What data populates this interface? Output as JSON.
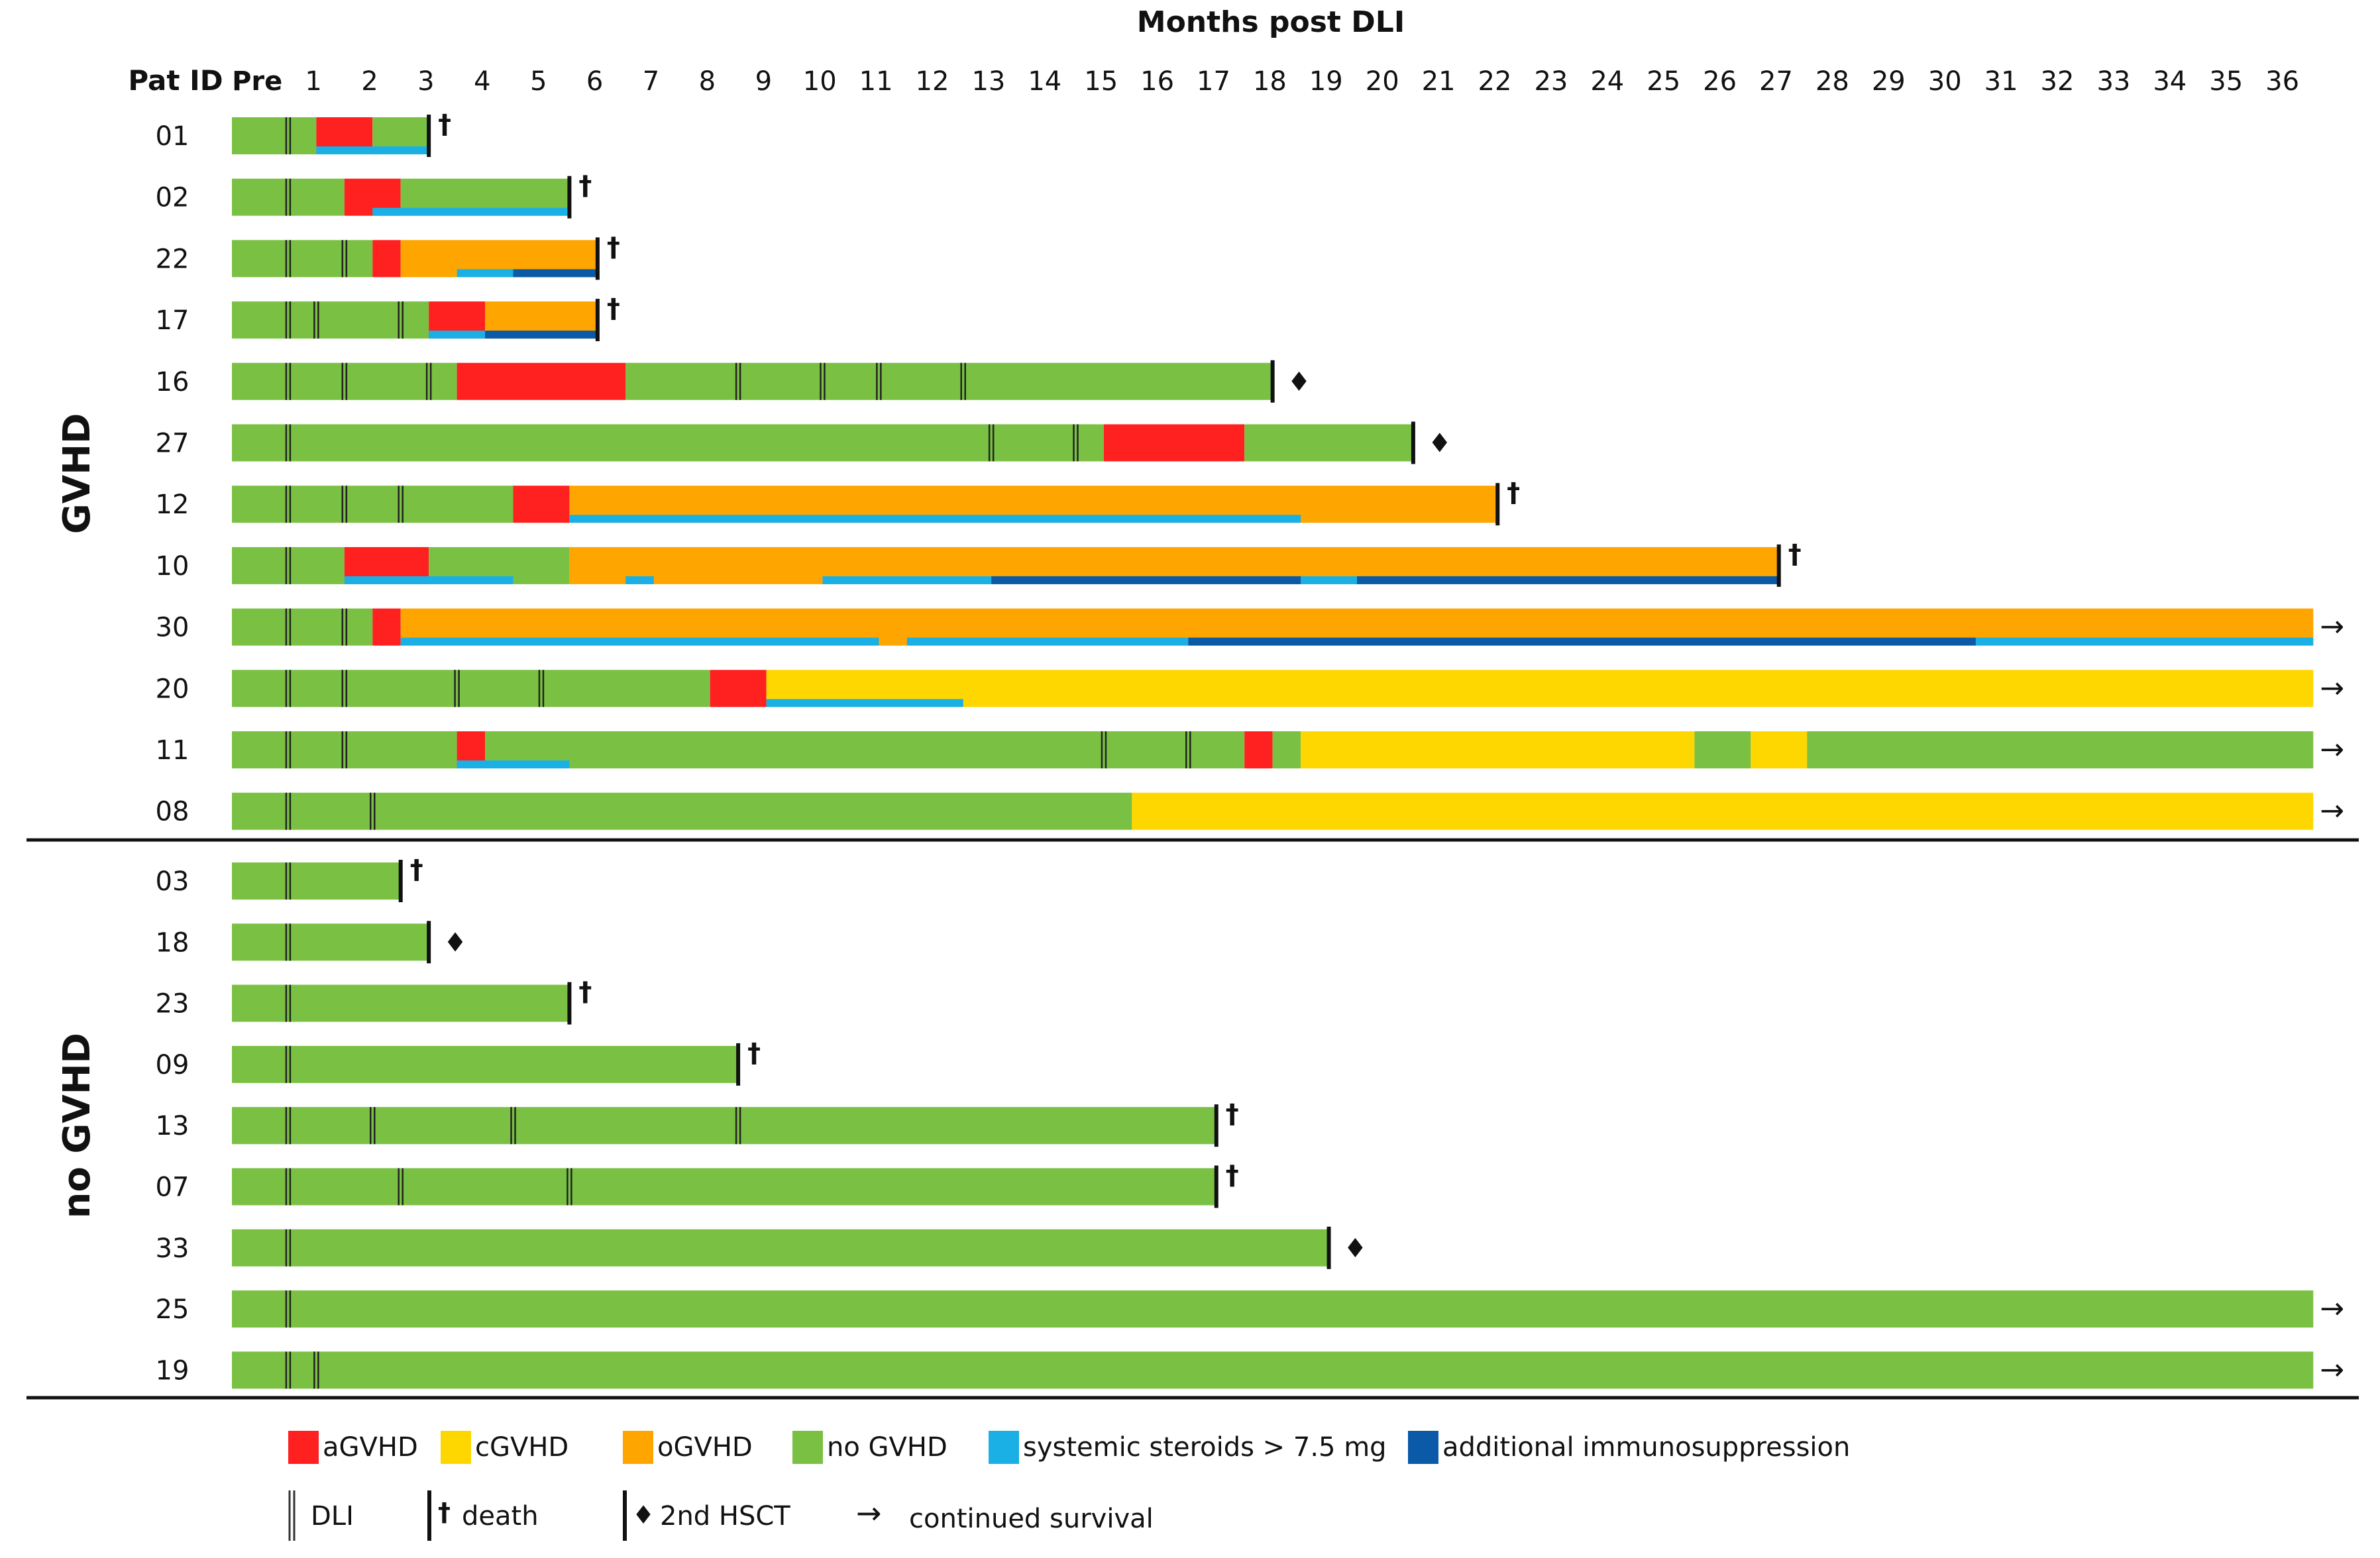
{
  "chart_data": {
    "type": "swimlane",
    "title": "Months post DLI",
    "row_header": "Pat ID",
    "x_ticks": [
      "Pre",
      "1",
      "2",
      "3",
      "4",
      "5",
      "6",
      "7",
      "8",
      "9",
      "10",
      "11",
      "12",
      "13",
      "14",
      "15",
      "16",
      "17",
      "18",
      "19",
      "20",
      "21",
      "22",
      "23",
      "24",
      "25",
      "26",
      "27",
      "28",
      "29",
      "30",
      "31",
      "32",
      "33",
      "34",
      "35",
      "36"
    ],
    "xlim": [
      -1,
      36
    ],
    "colors": {
      "aGVHD": "#ff2020",
      "cGVHD": "#ffd700",
      "oGVHD": "#ffa500",
      "noGVHD": "#7ac143",
      "steroids": "#1ab0e6",
      "immuno": "#0a5aa8",
      "marker": "#111111"
    },
    "groups": [
      {
        "name": "GVHD",
        "patients": [
          {
            "id": "01",
            "segments": [
              [
                -1,
                0.5,
                "noGVHD"
              ],
              [
                0.5,
                1.5,
                "aGVHD"
              ],
              [
                1.5,
                2.5,
                "noGVHD"
              ]
            ],
            "steroids": [
              [
                0.5,
                2.5
              ]
            ],
            "immuno": [],
            "dli": [
              0
            ],
            "end": {
              "at": 2.5,
              "type": "death"
            }
          },
          {
            "id": "02",
            "segments": [
              [
                -1,
                1,
                "noGVHD"
              ],
              [
                1,
                2,
                "aGVHD"
              ],
              [
                2,
                5,
                "noGVHD"
              ]
            ],
            "steroids": [
              [
                1.5,
                5
              ]
            ],
            "immuno": [],
            "dli": [
              0
            ],
            "end": {
              "at": 5,
              "type": "death"
            }
          },
          {
            "id": "22",
            "segments": [
              [
                -1,
                1.5,
                "noGVHD"
              ],
              [
                1.5,
                2,
                "aGVHD"
              ],
              [
                2,
                5.5,
                "oGVHD"
              ]
            ],
            "steroids": [
              [
                3,
                4
              ]
            ],
            "immuno": [
              [
                4,
                5.5
              ]
            ],
            "dli": [
              0,
              1
            ],
            "end": {
              "at": 5.5,
              "type": "death"
            }
          },
          {
            "id": "17",
            "segments": [
              [
                -1,
                2.5,
                "noGVHD"
              ],
              [
                2.5,
                3.5,
                "aGVHD"
              ],
              [
                3.5,
                5.5,
                "oGVHD"
              ]
            ],
            "steroids": [
              [
                2.5,
                3.5
              ]
            ],
            "immuno": [
              [
                3.5,
                5.5
              ]
            ],
            "dli": [
              0,
              0.5,
              2
            ],
            "end": {
              "at": 5.5,
              "type": "death"
            }
          },
          {
            "id": "16",
            "segments": [
              [
                -1,
                3,
                "noGVHD"
              ],
              [
                3,
                6,
                "aGVHD"
              ],
              [
                6,
                17.5,
                "noGVHD"
              ]
            ],
            "steroids": [],
            "immuno": [],
            "dli": [
              0,
              1,
              2.5,
              8,
              9.5,
              10.5,
              12
            ],
            "end": {
              "at": 17.5,
              "type": "hsct"
            }
          },
          {
            "id": "27",
            "segments": [
              [
                -1,
                14.5,
                "noGVHD"
              ],
              [
                14.5,
                17,
                "aGVHD"
              ],
              [
                17,
                20,
                "noGVHD"
              ]
            ],
            "steroids": [],
            "immuno": [],
            "dli": [
              0,
              12.5,
              14
            ],
            "end": {
              "at": 20,
              "type": "hsct"
            }
          },
          {
            "id": "12",
            "segments": [
              [
                -1,
                4,
                "noGVHD"
              ],
              [
                4,
                5,
                "aGVHD"
              ],
              [
                5,
                21.5,
                "oGVHD"
              ]
            ],
            "steroids": [
              [
                5,
                18
              ]
            ],
            "immuno": [],
            "dli": [
              0,
              1,
              2
            ],
            "end": {
              "at": 21.5,
              "type": "death"
            }
          },
          {
            "id": "10",
            "segments": [
              [
                -1,
                1,
                "noGVHD"
              ],
              [
                1,
                2.5,
                "aGVHD"
              ],
              [
                2.5,
                5,
                "noGVHD"
              ],
              [
                5,
                26.5,
                "oGVHD"
              ]
            ],
            "steroids": [
              [
                1,
                4
              ],
              [
                6,
                6.5
              ],
              [
                9.5,
                12.5
              ],
              [
                18,
                19
              ]
            ],
            "immuno": [
              [
                12.5,
                18
              ],
              [
                19,
                26.5
              ]
            ],
            "dli": [
              0
            ],
            "end": {
              "at": 26.5,
              "type": "death"
            }
          },
          {
            "id": "30",
            "segments": [
              [
                -1,
                1.5,
                "noGVHD"
              ],
              [
                1.5,
                2,
                "aGVHD"
              ],
              [
                2,
                36,
                "oGVHD"
              ]
            ],
            "steroids": [
              [
                2,
                10.5
              ],
              [
                11,
                16
              ],
              [
                30,
                36
              ]
            ],
            "immuno": [
              [
                16,
                30
              ]
            ],
            "dli": [
              0,
              1
            ],
            "end": {
              "at": 36,
              "type": "survival"
            }
          },
          {
            "id": "20",
            "segments": [
              [
                -1,
                7.5,
                "noGVHD"
              ],
              [
                7.5,
                8.5,
                "aGVHD"
              ],
              [
                8.5,
                36,
                "cGVHD"
              ]
            ],
            "steroids": [
              [
                8.5,
                12
              ]
            ],
            "immuno": [],
            "dli": [
              0,
              1,
              3,
              4.5
            ],
            "end": {
              "at": 36,
              "type": "survival"
            }
          },
          {
            "id": "11",
            "segments": [
              [
                -1,
                3,
                "noGVHD"
              ],
              [
                3,
                3.5,
                "aGVHD"
              ],
              [
                3.5,
                17,
                "noGVHD"
              ],
              [
                17,
                17.5,
                "aGVHD"
              ],
              [
                17.5,
                18,
                "noGVHD"
              ],
              [
                18,
                25,
                "cGVHD"
              ],
              [
                25,
                26,
                "noGVHD"
              ],
              [
                26,
                27,
                "cGVHD"
              ],
              [
                27,
                36,
                "noGVHD"
              ]
            ],
            "steroids": [
              [
                3,
                5
              ]
            ],
            "immuno": [],
            "dli": [
              0,
              1,
              14.5,
              16
            ],
            "end": {
              "at": 36,
              "type": "survival"
            }
          },
          {
            "id": "08",
            "segments": [
              [
                -1,
                15,
                "noGVHD"
              ],
              [
                15,
                36,
                "cGVHD"
              ]
            ],
            "steroids": [],
            "immuno": [],
            "dli": [
              0,
              1.5
            ],
            "end": {
              "at": 36,
              "type": "survival"
            }
          }
        ]
      },
      {
        "name": "no GVHD",
        "patients": [
          {
            "id": "03",
            "segments": [
              [
                -1,
                2,
                "noGVHD"
              ]
            ],
            "steroids": [],
            "immuno": [],
            "dli": [
              0
            ],
            "end": {
              "at": 2,
              "type": "death"
            }
          },
          {
            "id": "18",
            "segments": [
              [
                -1,
                2.5,
                "noGVHD"
              ]
            ],
            "steroids": [],
            "immuno": [],
            "dli": [
              0
            ],
            "end": {
              "at": 2.5,
              "type": "hsct"
            }
          },
          {
            "id": "23",
            "segments": [
              [
                -1,
                5,
                "noGVHD"
              ]
            ],
            "steroids": [],
            "immuno": [],
            "dli": [
              0
            ],
            "end": {
              "at": 5,
              "type": "death"
            }
          },
          {
            "id": "09",
            "segments": [
              [
                -1,
                8,
                "noGVHD"
              ]
            ],
            "steroids": [],
            "immuno": [],
            "dli": [
              0
            ],
            "end": {
              "at": 8,
              "type": "death"
            }
          },
          {
            "id": "13",
            "segments": [
              [
                -1,
                16.5,
                "noGVHD"
              ]
            ],
            "steroids": [],
            "immuno": [],
            "dli": [
              0,
              1.5,
              4,
              8
            ],
            "end": {
              "at": 16.5,
              "type": "death"
            }
          },
          {
            "id": "07",
            "segments": [
              [
                -1,
                16.5,
                "noGVHD"
              ]
            ],
            "steroids": [],
            "immuno": [],
            "dli": [
              0,
              2,
              5
            ],
            "end": {
              "at": 16.5,
              "type": "death"
            }
          },
          {
            "id": "33",
            "segments": [
              [
                -1,
                18.5,
                "noGVHD"
              ]
            ],
            "steroids": [],
            "immuno": [],
            "dli": [
              0
            ],
            "end": {
              "at": 18.5,
              "type": "hsct"
            }
          },
          {
            "id": "25",
            "segments": [
              [
                -1,
                36,
                "noGVHD"
              ]
            ],
            "steroids": [],
            "immuno": [],
            "dli": [
              0
            ],
            "end": {
              "at": 36,
              "type": "survival"
            }
          },
          {
            "id": "19",
            "segments": [
              [
                -1,
                36,
                "noGVHD"
              ]
            ],
            "steroids": [],
            "immuno": [],
            "dli": [
              0,
              0.5
            ],
            "end": {
              "at": 36,
              "type": "survival"
            }
          }
        ]
      }
    ],
    "legend": [
      {
        "key": "aGVHD",
        "label": "aGVHD",
        "kind": "swatch"
      },
      {
        "key": "cGVHD",
        "label": "cGVHD",
        "kind": "swatch"
      },
      {
        "key": "oGVHD",
        "label": "oGVHD",
        "kind": "swatch"
      },
      {
        "key": "noGVHD",
        "label": "no GVHD",
        "kind": "swatch"
      },
      {
        "key": "steroids",
        "label": "systemic steroids > 7.5 mg",
        "kind": "swatch"
      },
      {
        "key": "immuno",
        "label": "additional immunosuppression",
        "kind": "swatch"
      },
      {
        "key": "dli",
        "label": "DLI",
        "kind": "dli"
      },
      {
        "key": "death",
        "label": "death",
        "kind": "death"
      },
      {
        "key": "hsct",
        "label": "2nd HSCT",
        "kind": "hsct"
      },
      {
        "key": "survival",
        "label": "continued survival",
        "kind": "survival"
      }
    ],
    "symbols": {
      "death": "†",
      "hsct": "♦",
      "survival": "→"
    }
  }
}
